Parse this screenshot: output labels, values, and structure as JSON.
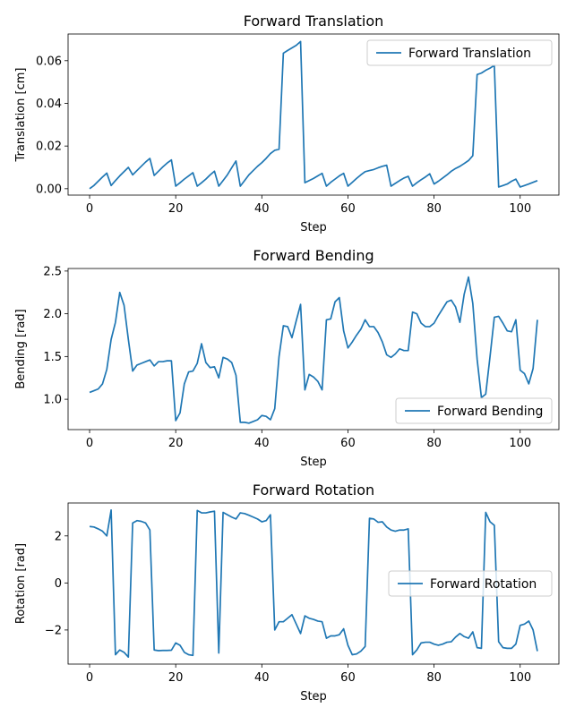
{
  "chart_data": [
    {
      "type": "line",
      "title": "Forward Translation",
      "xlabel": "Step",
      "ylabel": "Translation [cm]",
      "xlim": [
        -5,
        109
      ],
      "ylim": [
        -0.003,
        0.0725
      ],
      "xticks": [
        0,
        20,
        40,
        60,
        80,
        100
      ],
      "yticks": [
        0.0,
        0.02,
        0.04,
        0.06
      ],
      "ytick_labels": [
        "0.00",
        "0.02",
        "0.04",
        "0.06"
      ],
      "legend_position": "top-right",
      "color": "#1f77b4",
      "series": [
        {
          "name": "Forward Translation",
          "x": [
            0,
            1,
            2,
            3,
            4,
            5,
            6,
            7,
            8,
            9,
            10,
            11,
            12,
            13,
            14,
            15,
            16,
            17,
            18,
            19,
            20,
            21,
            22,
            23,
            24,
            25,
            26,
            27,
            28,
            29,
            30,
            31,
            32,
            33,
            34,
            35,
            36,
            37,
            38,
            39,
            40,
            41,
            42,
            43,
            44,
            45,
            46,
            47,
            48,
            49,
            50,
            51,
            52,
            53,
            54,
            55,
            56,
            57,
            58,
            59,
            60,
            61,
            62,
            63,
            64,
            65,
            66,
            67,
            68,
            69,
            70,
            71,
            72,
            73,
            74,
            75,
            76,
            77,
            78,
            79,
            80,
            81,
            82,
            83,
            84,
            85,
            86,
            87,
            88,
            89,
            90,
            91,
            92,
            93,
            94,
            95,
            96,
            97,
            98,
            99,
            100,
            101,
            102,
            103,
            104
          ],
          "values": [
            0.0,
            0.0015,
            0.0035,
            0.0055,
            0.0073,
            0.0015,
            0.0038,
            0.006,
            0.008,
            0.01,
            0.0065,
            0.0085,
            0.0105,
            0.0125,
            0.0142,
            0.0062,
            0.0082,
            0.0102,
            0.012,
            0.0135,
            0.0012,
            0.0028,
            0.0045,
            0.006,
            0.0075,
            0.0012,
            0.0028,
            0.0045,
            0.0065,
            0.0082,
            0.0012,
            0.0038,
            0.0065,
            0.0098,
            0.013,
            0.0012,
            0.0038,
            0.0065,
            0.0085,
            0.0105,
            0.0122,
            0.0142,
            0.0165,
            0.018,
            0.0185,
            0.0635,
            0.0648,
            0.066,
            0.0672,
            0.069,
            0.0028,
            0.0038,
            0.0048,
            0.006,
            0.0072,
            0.0012,
            0.003,
            0.0045,
            0.006,
            0.0072,
            0.0012,
            0.003,
            0.0048,
            0.0065,
            0.008,
            0.0085,
            0.009,
            0.0098,
            0.0105,
            0.011,
            0.0012,
            0.0025,
            0.0038,
            0.005,
            0.0058,
            0.0012,
            0.0028,
            0.0042,
            0.0055,
            0.007,
            0.0022,
            0.0035,
            0.005,
            0.0065,
            0.0082,
            0.0095,
            0.0105,
            0.0118,
            0.0132,
            0.0155,
            0.0535,
            0.0542,
            0.0555,
            0.0565,
            0.0578,
            0.0008,
            0.0015,
            0.0022,
            0.0035,
            0.0045,
            0.0008,
            0.0015,
            0.0022,
            0.003,
            0.0038
          ]
        }
      ]
    },
    {
      "type": "line",
      "title": "Forward Bending",
      "xlabel": "Step",
      "ylabel": "Bending [rad]",
      "xlim": [
        -5,
        109
      ],
      "ylim": [
        0.645,
        2.53
      ],
      "xticks": [
        0,
        20,
        40,
        60,
        80,
        100
      ],
      "yticks": [
        1.0,
        1.5,
        2.0,
        2.5
      ],
      "ytick_labels": [
        "1.0",
        "1.5",
        "2.0",
        "2.5"
      ],
      "legend_position": "bottom-right",
      "color": "#1f77b4",
      "series": [
        {
          "name": "Forward Bending",
          "x": [
            0,
            1,
            2,
            3,
            4,
            5,
            6,
            7,
            8,
            9,
            10,
            11,
            12,
            13,
            14,
            15,
            16,
            17,
            18,
            19,
            20,
            21,
            22,
            23,
            24,
            25,
            26,
            27,
            28,
            29,
            30,
            31,
            32,
            33,
            34,
            35,
            36,
            37,
            38,
            39,
            40,
            41,
            42,
            43,
            44,
            45,
            46,
            47,
            48,
            49,
            50,
            51,
            52,
            53,
            54,
            55,
            56,
            57,
            58,
            59,
            60,
            61,
            62,
            63,
            64,
            65,
            66,
            67,
            68,
            69,
            70,
            71,
            72,
            73,
            74,
            75,
            76,
            77,
            78,
            79,
            80,
            81,
            82,
            83,
            84,
            85,
            86,
            87,
            88,
            89,
            90,
            91,
            92,
            93,
            94,
            95,
            96,
            97,
            98,
            99,
            100,
            101,
            102,
            103,
            104
          ],
          "values": [
            1.08,
            1.1,
            1.12,
            1.18,
            1.35,
            1.7,
            1.9,
            2.25,
            2.1,
            1.7,
            1.33,
            1.4,
            1.42,
            1.44,
            1.46,
            1.39,
            1.44,
            1.44,
            1.45,
            1.45,
            0.75,
            0.84,
            1.18,
            1.32,
            1.33,
            1.42,
            1.65,
            1.43,
            1.37,
            1.38,
            1.25,
            1.49,
            1.47,
            1.43,
            1.28,
            0.73,
            0.73,
            0.72,
            0.74,
            0.76,
            0.81,
            0.8,
            0.76,
            0.89,
            1.5,
            1.86,
            1.85,
            1.72,
            1.92,
            2.11,
            1.11,
            1.29,
            1.26,
            1.21,
            1.11,
            1.93,
            1.94,
            2.14,
            2.19,
            1.8,
            1.6,
            1.67,
            1.75,
            1.82,
            1.93,
            1.85,
            1.85,
            1.78,
            1.67,
            1.52,
            1.49,
            1.53,
            1.59,
            1.57,
            1.57,
            2.02,
            2.0,
            1.89,
            1.85,
            1.85,
            1.89,
            1.98,
            2.06,
            2.14,
            2.16,
            2.08,
            1.9,
            2.23,
            2.43,
            2.12,
            1.47,
            1.02,
            1.06,
            1.5,
            1.96,
            1.97,
            1.89,
            1.8,
            1.79,
            1.93,
            1.34,
            1.3,
            1.18,
            1.36,
            1.93
          ]
        }
      ]
    },
    {
      "type": "line",
      "title": "Forward Rotation",
      "xlabel": "Step",
      "ylabel": "Rotation [rad]",
      "xlim": [
        -5,
        109
      ],
      "ylim": [
        -3.45,
        3.4
      ],
      "xticks": [
        0,
        20,
        40,
        60,
        80,
        100
      ],
      "yticks": [
        -2,
        0,
        2
      ],
      "ytick_labels": [
        "−2",
        "0",
        "2"
      ],
      "legend_position": "center-right",
      "color": "#1f77b4",
      "series": [
        {
          "name": "Forward Rotation",
          "x": [
            0,
            1,
            2,
            3,
            4,
            5,
            6,
            7,
            8,
            9,
            10,
            11,
            12,
            13,
            14,
            15,
            16,
            17,
            18,
            19,
            20,
            21,
            22,
            23,
            24,
            25,
            26,
            27,
            28,
            29,
            30,
            31,
            32,
            33,
            34,
            35,
            36,
            37,
            38,
            39,
            40,
            41,
            42,
            43,
            44,
            45,
            46,
            47,
            48,
            49,
            50,
            51,
            52,
            53,
            54,
            55,
            56,
            57,
            58,
            59,
            60,
            61,
            62,
            63,
            64,
            65,
            66,
            67,
            68,
            69,
            70,
            71,
            72,
            73,
            74,
            75,
            76,
            77,
            78,
            79,
            80,
            81,
            82,
            83,
            84,
            85,
            86,
            87,
            88,
            89,
            90,
            91,
            92,
            93,
            94,
            95,
            96,
            97,
            98,
            99,
            100,
            101,
            102,
            103,
            104
          ],
          "values": [
            2.4,
            2.38,
            2.3,
            2.2,
            2.0,
            3.1,
            -3.05,
            -2.85,
            -2.95,
            -3.15,
            2.55,
            2.65,
            2.62,
            2.55,
            2.25,
            -2.85,
            -2.88,
            -2.87,
            -2.87,
            -2.86,
            -2.55,
            -2.65,
            -2.95,
            -3.05,
            -3.08,
            3.08,
            2.98,
            2.98,
            3.02,
            3.05,
            -2.98,
            3.0,
            2.9,
            2.8,
            2.72,
            2.98,
            2.95,
            2.88,
            2.8,
            2.72,
            2.6,
            2.65,
            2.9,
            -2.0,
            -1.65,
            -1.65,
            -1.5,
            -1.35,
            -1.75,
            -2.15,
            -1.4,
            -1.5,
            -1.55,
            -1.62,
            -1.65,
            -2.35,
            -2.25,
            -2.25,
            -2.2,
            -1.95,
            -2.65,
            -3.05,
            -3.02,
            -2.9,
            -2.7,
            2.75,
            2.72,
            2.58,
            2.6,
            2.38,
            2.25,
            2.2,
            2.25,
            2.25,
            2.3,
            -3.05,
            -2.85,
            -2.55,
            -2.52,
            -2.52,
            -2.6,
            -2.65,
            -2.6,
            -2.52,
            -2.5,
            -2.3,
            -2.15,
            -2.28,
            -2.35,
            -2.08,
            -2.75,
            -2.78,
            3.0,
            2.6,
            2.45,
            -2.5,
            -2.75,
            -2.78,
            -2.78,
            -2.6,
            -1.8,
            -1.75,
            -1.62,
            -2.0,
            -2.9
          ]
        }
      ]
    }
  ]
}
